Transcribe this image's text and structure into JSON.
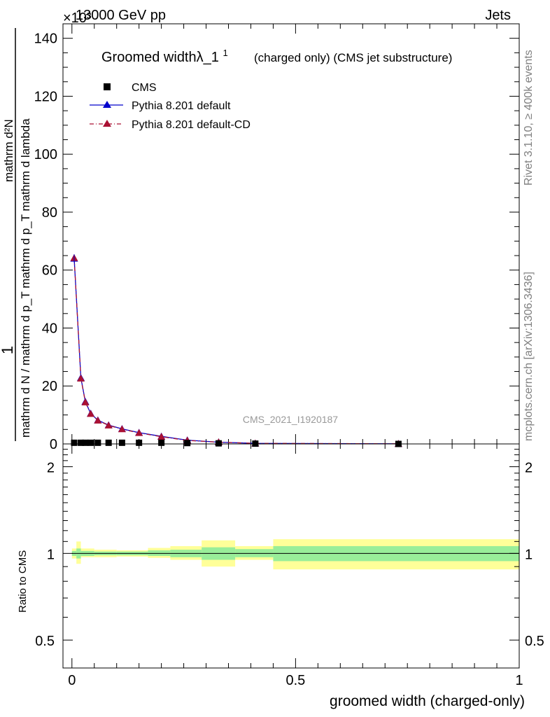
{
  "header": {
    "exponent_label": "×10³",
    "beam_label": "13000 GeV pp",
    "process_label": "Jets"
  },
  "side_labels": {
    "rivet": "Rivet 3.1.10, ≥ 400k events",
    "mcplots": "mcplots.cern.ch [arXiv:1306.3436]"
  },
  "watermark": "CMS_2021_I1920187",
  "chart_data": [
    {
      "type": "line",
      "title": "Groomed widthλ_1",
      "title_superscript": "1",
      "subtitle": "(charged only) (CMS jet substructure)",
      "ylabel_numerator": "1",
      "ylabel_denominator": "mathrm d N / mathrm d p_T mathrm d p_T mathrm d lambda",
      "ylabel_top": "mathrm d²N",
      "xlim": [
        -0.02,
        1.0
      ],
      "ylim": [
        0,
        145
      ],
      "y_ticks": [
        0,
        20,
        40,
        60,
        80,
        100,
        120,
        140
      ],
      "y_tick_labels": [
        "0",
        "20",
        "40",
        "60",
        "80",
        "100",
        "120",
        "140"
      ],
      "legend": [
        {
          "name": "CMS",
          "color": "#000000",
          "marker": "square"
        },
        {
          "name": "Pythia 8.201 default",
          "color": "#0000cc",
          "marker": "triangle"
        },
        {
          "name": "Pythia 8.201 default-CD",
          "color": "#aa1133",
          "marker": "triangle"
        }
      ],
      "x": [
        0.005,
        0.02,
        0.03,
        0.042,
        0.058,
        0.082,
        0.112,
        0.15,
        0.2,
        0.258,
        0.328,
        0.41,
        0.73
      ],
      "series": [
        {
          "name": "CMS",
          "values": [
            0.4,
            0.4,
            0.4,
            0.4,
            0.4,
            0.4,
            0.4,
            0.4,
            0.4,
            0.3,
            0.2,
            0.1,
            0.0
          ]
        },
        {
          "name": "Pythia 8.201 default",
          "values": [
            64.0,
            22.8,
            14.6,
            10.5,
            8.2,
            6.5,
            5.2,
            3.9,
            2.6,
            1.3,
            0.6,
            0.2,
            0.05
          ]
        },
        {
          "name": "Pythia 8.201 default-CD",
          "values": [
            64.2,
            22.6,
            14.4,
            10.4,
            8.1,
            6.4,
            5.1,
            3.8,
            2.5,
            1.2,
            0.6,
            0.2,
            0.05
          ]
        }
      ]
    },
    {
      "type": "area",
      "ylabel": "Ratio to CMS",
      "xlabel": "groomed width (charged-only)",
      "xlim": [
        -0.02,
        1.0
      ],
      "ylim": [
        0.4,
        2.4
      ],
      "y_scale": "log",
      "y_ticks": [
        0.5,
        1,
        2
      ],
      "y_tick_labels": [
        "0.5",
        "1",
        "2"
      ],
      "x_ticks": [
        0,
        0.5,
        1
      ],
      "x_tick_labels": [
        "0",
        "0.5",
        "1"
      ],
      "bins": [
        {
          "x0": 0.0,
          "x1": 0.01,
          "inner": [
            0.98,
            1.02
          ],
          "outer": [
            0.96,
            1.04
          ]
        },
        {
          "x0": 0.01,
          "x1": 0.02,
          "inner": [
            0.96,
            1.04
          ],
          "outer": [
            0.92,
            1.1
          ]
        },
        {
          "x0": 0.02,
          "x1": 0.05,
          "inner": [
            0.98,
            1.02
          ],
          "outer": [
            0.97,
            1.04
          ]
        },
        {
          "x0": 0.05,
          "x1": 0.1,
          "inner": [
            0.985,
            1.015
          ],
          "outer": [
            0.97,
            1.03
          ]
        },
        {
          "x0": 0.1,
          "x1": 0.17,
          "inner": [
            0.985,
            1.015
          ],
          "outer": [
            0.975,
            1.025
          ]
        },
        {
          "x0": 0.17,
          "x1": 0.22,
          "inner": [
            0.98,
            1.025
          ],
          "outer": [
            0.965,
            1.045
          ]
        },
        {
          "x0": 0.22,
          "x1": 0.29,
          "inner": [
            0.97,
            1.03
          ],
          "outer": [
            0.95,
            1.06
          ]
        },
        {
          "x0": 0.29,
          "x1": 0.365,
          "inner": [
            0.95,
            1.05
          ],
          "outer": [
            0.9,
            1.11
          ]
        },
        {
          "x0": 0.365,
          "x1": 0.45,
          "inner": [
            0.97,
            1.035
          ],
          "outer": [
            0.95,
            1.06
          ]
        },
        {
          "x0": 0.45,
          "x1": 1.0,
          "inner": [
            0.94,
            1.06
          ],
          "outer": [
            0.88,
            1.12
          ]
        }
      ],
      "colors": {
        "inner": "#99ee99",
        "outer": "#ffff99"
      }
    }
  ]
}
